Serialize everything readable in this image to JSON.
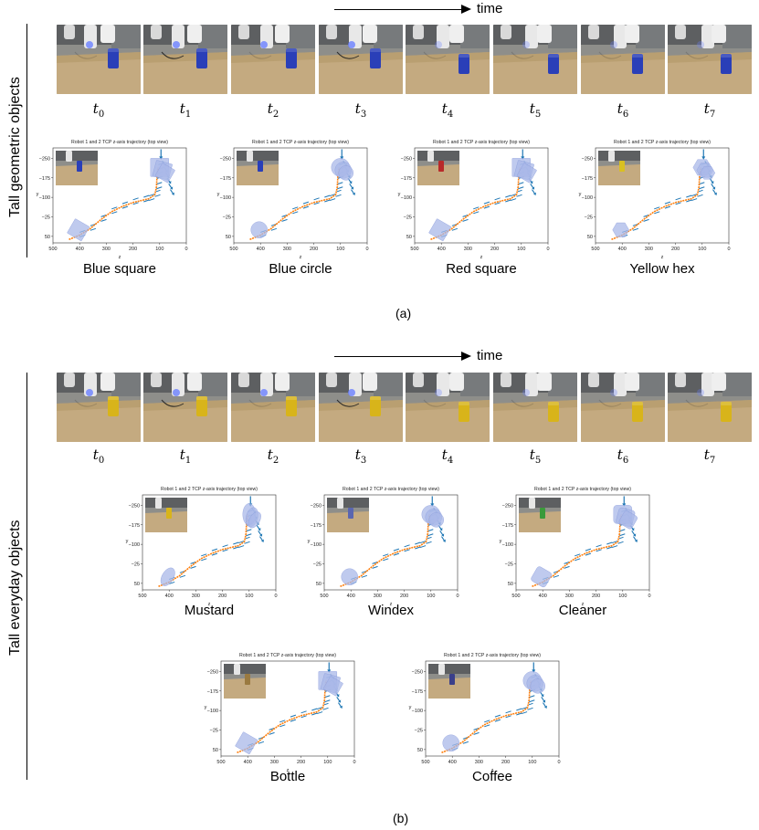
{
  "time_label": "time",
  "time_steps": [
    {
      "var": "t",
      "sub": "0"
    },
    {
      "var": "t",
      "sub": "1"
    },
    {
      "var": "t",
      "sub": "2"
    },
    {
      "var": "t",
      "sub": "3"
    },
    {
      "var": "t",
      "sub": "4"
    },
    {
      "var": "t",
      "sub": "5"
    },
    {
      "var": "t",
      "sub": "6"
    },
    {
      "var": "t",
      "sub": "7"
    }
  ],
  "panel_a": {
    "row_label": "Tall geometric objects",
    "caption": "(a)",
    "objects": [
      {
        "name": "Blue square",
        "shape": "square",
        "color": "#2a3fb8"
      },
      {
        "name": "Blue circle",
        "shape": "circle",
        "color": "#2a3fb8"
      },
      {
        "name": "Red square",
        "shape": "square",
        "color": "#b82a2a"
      },
      {
        "name": "Yellow hex",
        "shape": "hex",
        "color": "#d9c021"
      }
    ],
    "frame_object_color": "#2a3fb8"
  },
  "panel_b": {
    "row_label": "Tall everyday objects",
    "caption": "(b)",
    "objects": [
      {
        "name": "Mustard",
        "shape": "ellipse",
        "color": "#d8b41a"
      },
      {
        "name": "Windex",
        "shape": "round",
        "color": "#5a66b0"
      },
      {
        "name": "Cleaner",
        "shape": "rounded",
        "color": "#3a9a3a"
      },
      {
        "name": "Bottle",
        "shape": "square",
        "color": "#9a7a40"
      },
      {
        "name": "Coffee",
        "shape": "circle",
        "color": "#3a3f8a"
      }
    ],
    "frame_object_color": "#d8b41a"
  },
  "plot_common": {
    "title": "Robot 1 and 2 TCP z-axis trajectory (top view)",
    "xlabel": "z",
    "ylabel": "y",
    "xticks": [
      "500",
      "400",
      "300",
      "200",
      "100",
      "0"
    ],
    "yticks": [
      "−250",
      "−175",
      "−100",
      "−25",
      "50"
    ]
  },
  "colors": {
    "trajectory": "#ff7f0e",
    "orientation_arrow": "#1f77b4",
    "footprint": "#a9b8e8"
  }
}
